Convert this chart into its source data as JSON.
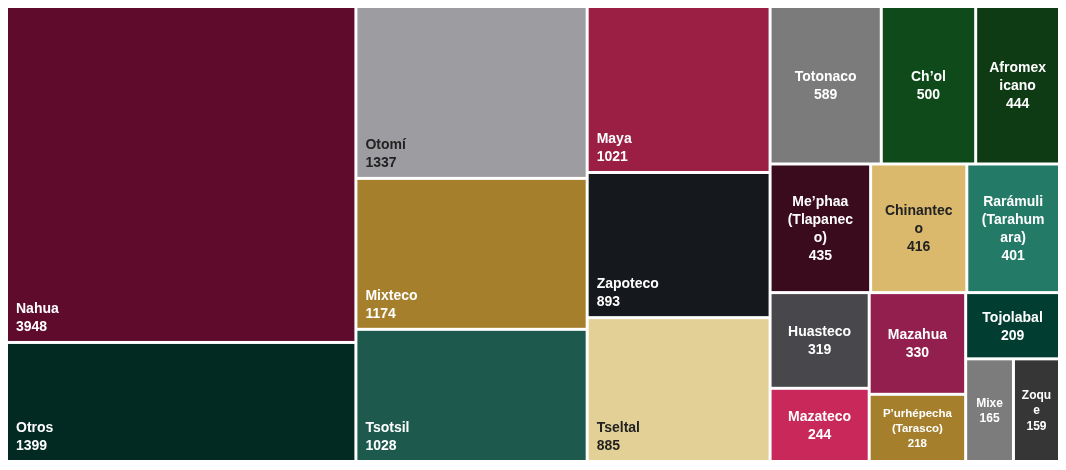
{
  "chart_data": {
    "type": "other",
    "categories": [
      "Nahua",
      "Otros",
      "Otomí",
      "Mixteco",
      "Tsotsil",
      "Maya",
      "Zapoteco",
      "Tseltal",
      "Totonaco",
      "Ch’ol",
      "Afromexicano",
      "Me’phaa (Tlapaneco)",
      "Chinanteco",
      "Rarámuli (Tarahumara)",
      "Huasteco",
      "Mazateco",
      "Mazahua",
      "P’urhépecha (Tarasco)",
      "Tojolabal",
      "Mixe",
      "Zoque"
    ],
    "values": [
      3948,
      1399,
      1337,
      1174,
      1028,
      1021,
      893,
      885,
      589,
      500,
      444,
      435,
      416,
      401,
      319,
      244,
      330,
      218,
      209,
      165,
      159
    ],
    "colors": [
      "#5e0b2c",
      "#022a22",
      "#9d9ca0",
      "#a67f2c",
      "#1d5a4d",
      "#9b1e45",
      "#15181c",
      "#e2d097",
      "#7b7b7b",
      "#0f4a1a",
      "#0e3a14",
      "#3a0b1d",
      "#dab86c",
      "#237a67",
      "#48484c",
      "#c8285a",
      "#931f4f",
      "#a67f2c",
      "#023d31",
      "#7c7c7c",
      "#363636"
    ],
    "data_labels": true
  }
}
